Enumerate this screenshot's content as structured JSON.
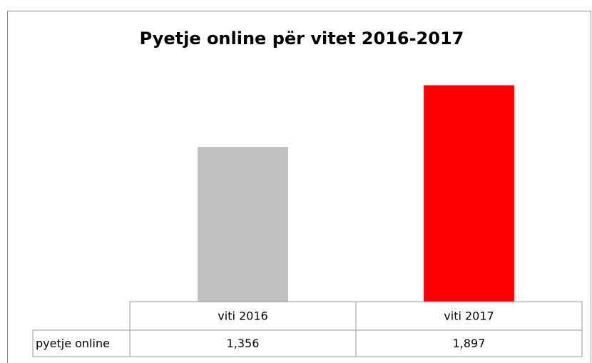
{
  "chart_data": {
    "type": "bar",
    "title": "Pyetje online për vitet 2016-2017",
    "categories": [
      "viti 2016",
      "viti 2017"
    ],
    "series": [
      {
        "name": "pyetje online",
        "colors": [
          "#c0c0c0",
          "#ff0000"
        ],
        "values": [
          1356,
          1897
        ],
        "value_labels": [
          "1,356",
          "1,897"
        ]
      }
    ],
    "ylim": [
      0,
      2000
    ],
    "data_table": true
  }
}
